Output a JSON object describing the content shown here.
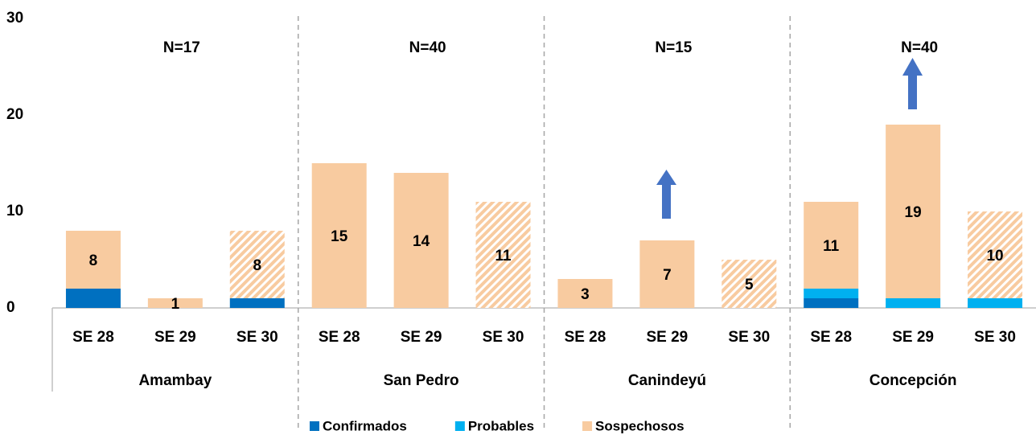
{
  "chart_data": {
    "type": "stacked_bar",
    "categories": [
      "SE 28",
      "SE 29",
      "SE 30",
      "SE 28",
      "SE 29",
      "SE 30",
      "SE 28",
      "SE 29",
      "SE 30",
      "SE 28",
      "SE 29",
      "SE 30"
    ],
    "groups": [
      {
        "name": "Amambay",
        "n": "N=17"
      },
      {
        "name": "San Pedro",
        "n": "N=40"
      },
      {
        "name": "Canindeyú",
        "n": "N=15"
      },
      {
        "name": "Concepción",
        "n": "N=40"
      }
    ],
    "series": [
      {
        "name": "Confirmados",
        "color": "#0070c0",
        "values": [
          2,
          0,
          1,
          0,
          0,
          0,
          0,
          0,
          0,
          1,
          0,
          0
        ]
      },
      {
        "name": "Probables",
        "color": "#00b0f0",
        "values": [
          0,
          0,
          0,
          0,
          0,
          0,
          0,
          0,
          0,
          1,
          1,
          1
        ]
      },
      {
        "name": "Sospechosos",
        "color": "#f8cba0",
        "values": [
          6,
          1,
          7,
          15,
          14,
          11,
          3,
          7,
          5,
          9,
          18,
          9
        ],
        "hatched": [
          false,
          false,
          true,
          false,
          false,
          true,
          false,
          false,
          true,
          false,
          false,
          true
        ]
      }
    ],
    "totals": [
      8,
      1,
      8,
      15,
      14,
      11,
      3,
      7,
      5,
      11,
      19,
      10
    ],
    "ylim": [
      0,
      30
    ],
    "yticks": [
      0,
      10,
      20,
      30
    ],
    "grid": false,
    "legend": "bottom"
  }
}
